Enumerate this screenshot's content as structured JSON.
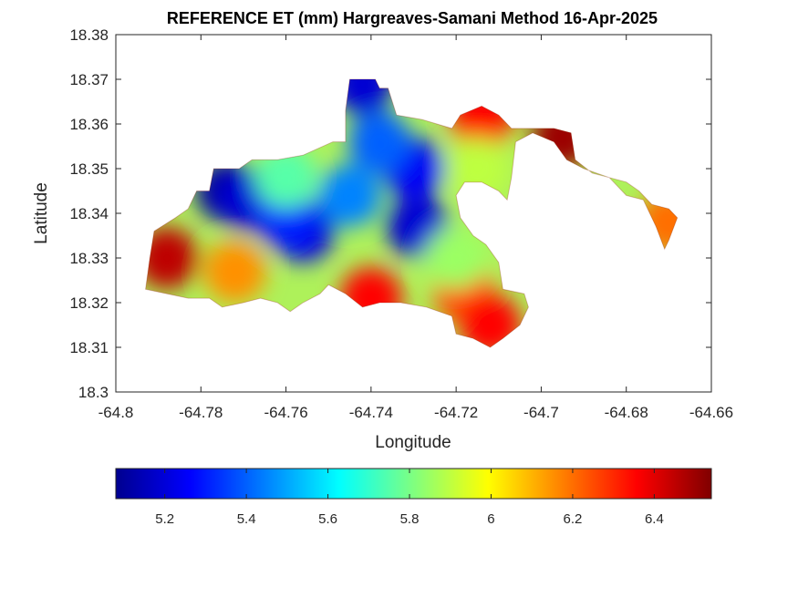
{
  "title": "REFERENCE ET (mm) Hargreaves-Samani Method  16-Apr-2025",
  "chart_data": {
    "type": "heatmap",
    "title": "REFERENCE ET (mm) Hargreaves-Samani Method  16-Apr-2025",
    "xlabel": "Longitude",
    "ylabel": "Latitude",
    "xlim": [
      -64.8,
      -64.66
    ],
    "ylim": [
      18.3,
      18.38
    ],
    "x_ticks": [
      "-64.8",
      "-64.78",
      "-64.76",
      "-64.74",
      "-64.72",
      "-64.7",
      "-64.68",
      "-64.66"
    ],
    "y_ticks": [
      "18.3",
      "18.31",
      "18.32",
      "18.33",
      "18.34",
      "18.35",
      "18.36",
      "18.37",
      "18.38"
    ],
    "colorbar": {
      "colormap": "jet",
      "range": [
        5.08,
        6.54
      ],
      "ticks": [
        "5.2",
        "5.4",
        "5.6",
        "5.8",
        "6",
        "6.2",
        "6.4"
      ],
      "placement": "bottom"
    },
    "region_outline": [
      [
        -64.793,
        18.323
      ],
      [
        -64.792,
        18.33
      ],
      [
        -64.791,
        18.336
      ],
      [
        -64.786,
        18.339
      ],
      [
        -64.783,
        18.341
      ],
      [
        -64.781,
        18.345
      ],
      [
        -64.778,
        18.345
      ],
      [
        -64.777,
        18.35
      ],
      [
        -64.771,
        18.35
      ],
      [
        -64.768,
        18.352
      ],
      [
        -64.762,
        18.352
      ],
      [
        -64.756,
        18.353
      ],
      [
        -64.749,
        18.356
      ],
      [
        -64.746,
        18.356
      ],
      [
        -64.746,
        18.363
      ],
      [
        -64.745,
        18.37
      ],
      [
        -64.739,
        18.37
      ],
      [
        -64.738,
        18.368
      ],
      [
        -64.736,
        18.368
      ],
      [
        -64.734,
        18.362
      ],
      [
        -64.728,
        18.361
      ],
      [
        -64.721,
        18.359
      ],
      [
        -64.719,
        18.362
      ],
      [
        -64.714,
        18.364
      ],
      [
        -64.71,
        18.362
      ],
      [
        -64.707,
        18.359
      ],
      [
        -64.702,
        18.359
      ],
      [
        -64.697,
        18.359
      ],
      [
        -64.693,
        18.358
      ],
      [
        -64.692,
        18.352
      ],
      [
        -64.688,
        18.349
      ],
      [
        -64.684,
        18.348
      ],
      [
        -64.68,
        18.347
      ],
      [
        -64.677,
        18.345
      ],
      [
        -64.674,
        18.342
      ],
      [
        -64.67,
        18.341
      ],
      [
        -64.668,
        18.339
      ],
      [
        -64.67,
        18.334
      ],
      [
        -64.671,
        18.332
      ],
      [
        -64.673,
        18.337
      ],
      [
        -64.676,
        18.343
      ],
      [
        -64.68,
        18.344
      ],
      [
        -64.684,
        18.348
      ],
      [
        -64.69,
        18.35
      ],
      [
        -64.694,
        18.352
      ],
      [
        -64.697,
        18.356
      ],
      [
        -64.702,
        18.358
      ],
      [
        -64.706,
        18.356
      ],
      [
        -64.707,
        18.348
      ],
      [
        -64.708,
        18.343
      ],
      [
        -64.71,
        18.345
      ],
      [
        -64.714,
        18.347
      ],
      [
        -64.718,
        18.347
      ],
      [
        -64.72,
        18.344
      ],
      [
        -64.719,
        18.339
      ],
      [
        -64.716,
        18.335
      ],
      [
        -64.713,
        18.333
      ],
      [
        -64.71,
        18.329
      ],
      [
        -64.709,
        18.323
      ],
      [
        -64.704,
        18.322
      ],
      [
        -64.703,
        18.319
      ],
      [
        -64.705,
        18.315
      ],
      [
        -64.709,
        18.312
      ],
      [
        -64.712,
        18.31
      ],
      [
        -64.716,
        18.312
      ],
      [
        -64.72,
        18.313
      ],
      [
        -64.721,
        18.317
      ],
      [
        -64.727,
        18.319
      ],
      [
        -64.733,
        18.32
      ],
      [
        -64.738,
        18.32
      ],
      [
        -64.742,
        18.319
      ],
      [
        -64.746,
        18.322
      ],
      [
        -64.75,
        18.324
      ],
      [
        -64.752,
        18.322
      ],
      [
        -64.756,
        18.32
      ],
      [
        -64.759,
        18.318
      ],
      [
        -64.762,
        18.32
      ],
      [
        -64.766,
        18.321
      ],
      [
        -64.77,
        18.32
      ],
      [
        -64.775,
        18.319
      ],
      [
        -64.778,
        18.321
      ],
      [
        -64.783,
        18.321
      ],
      [
        -64.788,
        18.322
      ],
      [
        -64.793,
        18.323
      ]
    ],
    "hotspots": [
      {
        "lon": -64.774,
        "lat": 18.345,
        "value": 5.12
      },
      {
        "lon": -64.769,
        "lat": 18.343,
        "value": 5.2
      },
      {
        "lon": -64.756,
        "lat": 18.336,
        "value": 5.22
      },
      {
        "lon": -64.76,
        "lat": 18.339,
        "value": 5.3
      },
      {
        "lon": -64.729,
        "lat": 18.337,
        "value": 5.2
      },
      {
        "lon": -64.73,
        "lat": 18.35,
        "value": 5.25
      },
      {
        "lon": -64.745,
        "lat": 18.344,
        "value": 5.45
      },
      {
        "lon": -64.738,
        "lat": 18.356,
        "value": 5.4
      },
      {
        "lon": -64.742,
        "lat": 18.369,
        "value": 5.2
      },
      {
        "lon": -64.788,
        "lat": 18.33,
        "value": 6.45
      },
      {
        "lon": -64.772,
        "lat": 18.327,
        "value": 6.15
      },
      {
        "lon": -64.74,
        "lat": 18.321,
        "value": 6.35
      },
      {
        "lon": -64.718,
        "lat": 18.322,
        "value": 6.25
      },
      {
        "lon": -64.712,
        "lat": 18.315,
        "value": 6.35
      },
      {
        "lon": -64.714,
        "lat": 18.361,
        "value": 6.35
      },
      {
        "lon": -64.695,
        "lat": 18.357,
        "value": 6.5
      },
      {
        "lon": -64.67,
        "lat": 18.338,
        "value": 6.2
      },
      {
        "lon": -64.715,
        "lat": 18.35,
        "value": 5.9
      },
      {
        "lon": -64.72,
        "lat": 18.33,
        "value": 5.85
      },
      {
        "lon": -64.76,
        "lat": 18.348,
        "value": 5.75
      }
    ]
  }
}
